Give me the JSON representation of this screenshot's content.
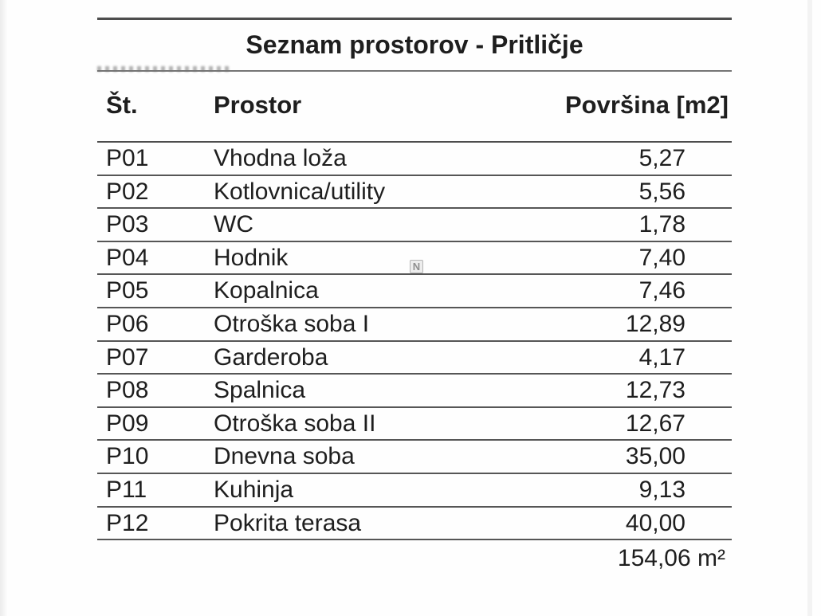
{
  "title": "Seznam prostorov - Pritličje",
  "table": {
    "headers": {
      "num": "Št.",
      "room": "Prostor",
      "area": "Površina [m2]"
    },
    "rows": [
      {
        "num": "P01",
        "room": "Vhodna loža",
        "area": "5,27"
      },
      {
        "num": "P02",
        "room": "Kotlovnica/utility",
        "area": "5,56"
      },
      {
        "num": "P03",
        "room": "WC",
        "area": "1,78"
      },
      {
        "num": "P04",
        "room": "Hodnik",
        "area": "7,40"
      },
      {
        "num": "P05",
        "room": "Kopalnica",
        "area": "7,46"
      },
      {
        "num": "P06",
        "room": "Otroška soba I",
        "area": "12,89"
      },
      {
        "num": "P07",
        "room": "Garderoba",
        "area": "4,17"
      },
      {
        "num": "P08",
        "room": "Spalnica",
        "area": "12,73"
      },
      {
        "num": "P09",
        "room": "Otroška soba II",
        "area": "12,67"
      },
      {
        "num": "P10",
        "room": "Dnevna soba",
        "area": "35,00"
      },
      {
        "num": "P11",
        "room": "Kuhinja",
        "area": "9,13"
      },
      {
        "num": "P12",
        "room": "Pokrita terasa",
        "area": "40,00"
      }
    ],
    "total": "154,06 m²"
  },
  "watermark": {
    "letter": "N"
  }
}
